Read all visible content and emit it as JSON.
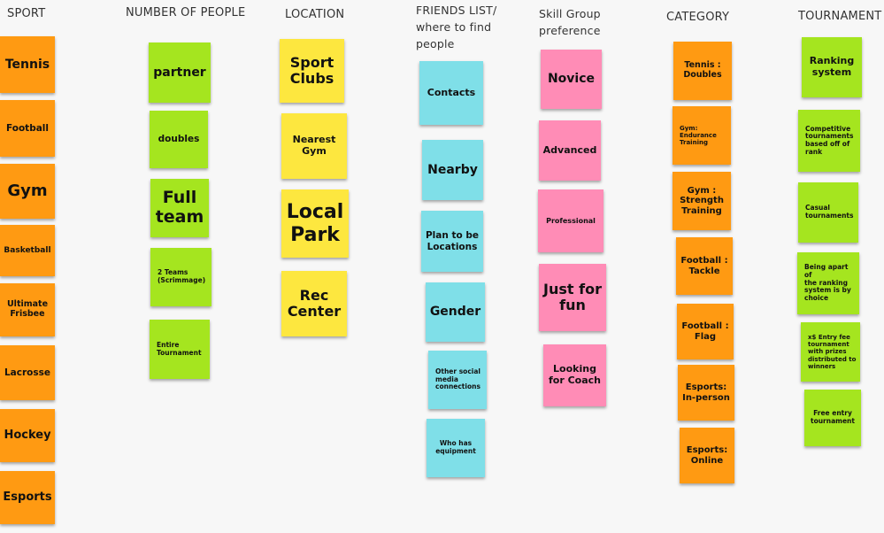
{
  "headers": {
    "sport": "SPORT",
    "people": "NUMBER OF PEOPLE",
    "location": "LOCATION",
    "friends": "FRIENDS LIST/\nwhere to find\npeople",
    "skill": "Skill  Group\npreference",
    "category": "CATEGORY",
    "tournament": "TOURNAMENT"
  },
  "sport": [
    "Tennis",
    "Football",
    "Gym",
    "Basketball",
    "Ultimate\nFrisbee",
    "Lacrosse",
    "Hockey",
    "Esports"
  ],
  "people": [
    "partner",
    "doubles",
    "Full\nteam",
    "2 Teams\n(Scrimmage)",
    "Entire\nTournament"
  ],
  "location": [
    "Sport\nClubs",
    "Nearest\nGym",
    "Local\nPark",
    "Rec\nCenter"
  ],
  "friends": [
    "Contacts",
    "Nearby",
    "Plan to be\nLocations",
    "Gender",
    "Other social\nmedia\nconnections",
    "Who has\nequipment"
  ],
  "skill": [
    "Novice",
    "Advanced",
    "Professional",
    "Just for\nfun",
    "Looking\nfor Coach"
  ],
  "category": [
    "Tennis :\nDoubles",
    "Gym:\nEndurance\nTraining",
    "Gym :\nStrength\nTraining",
    "Football :\nTackle",
    "Football :\nFlag",
    "Esports:\nIn-person",
    "Esports:\nOnline"
  ],
  "tournament": [
    "Ranking\nsystem",
    "Competitive\ntournaments\nbased off of\nrank",
    "Casual\ntournaments",
    "Being apart of\nthe ranking\nsystem is by\nchoice",
    "x$ Entry fee\ntournament\nwith prizes\ndistributed to\nwinners",
    "Free entry\ntournament"
  ],
  "colors": {
    "sport": "#ff9a12",
    "people": "#a5e51f",
    "location": "#fde73f",
    "friends": "#7fdfe8",
    "skill": "#ff8cb6",
    "category": "#ff9a12",
    "tournament": "#a5e51f"
  }
}
